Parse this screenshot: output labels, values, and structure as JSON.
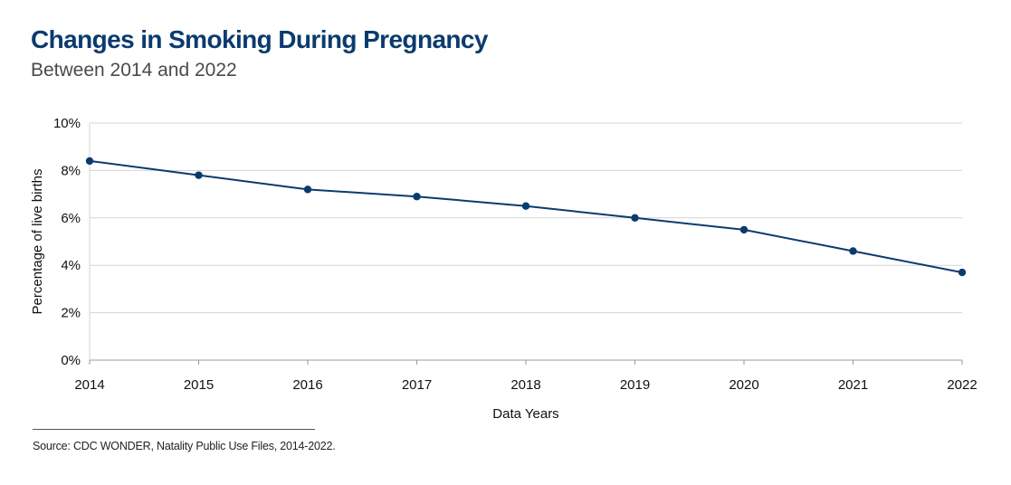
{
  "title": "Changes in Smoking During Pregnancy",
  "subtitle": "Between 2014 and 2022",
  "source": "Source: CDC WONDER, Natality Public Use Files, 2014-2022.",
  "colors": {
    "title": "#0b3b6e",
    "line": "#0b3b6e",
    "grid": "#d4d4d4"
  },
  "chart_data": {
    "type": "line",
    "title": "Changes in Smoking During Pregnancy",
    "subtitle": "Between 2014 and 2022",
    "xlabel": "Data Years",
    "ylabel": "Percentage of live births",
    "x": [
      "2014",
      "2015",
      "2016",
      "2017",
      "2018",
      "2019",
      "2020",
      "2021",
      "2022"
    ],
    "series": [
      {
        "name": "Smoking during pregnancy",
        "values": [
          8.4,
          7.8,
          7.2,
          6.9,
          6.5,
          6.0,
          5.5,
          4.6,
          3.7
        ]
      }
    ],
    "ylim": [
      0,
      10
    ],
    "yticks": [
      0,
      2,
      4,
      6,
      8,
      10
    ],
    "ytick_labels": [
      "0%",
      "2%",
      "4%",
      "6%",
      "8%",
      "10%"
    ],
    "grid": true,
    "markers": true
  }
}
